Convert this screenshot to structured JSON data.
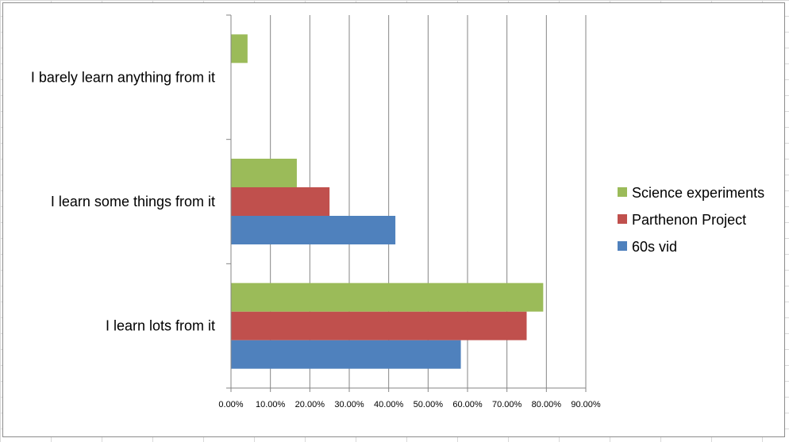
{
  "chart_data": {
    "type": "bar",
    "orientation": "horizontal",
    "categories": [
      "I learn lots from it",
      "I learn some things from it",
      "I barely learn anything from it"
    ],
    "series": [
      {
        "name": "60s vid",
        "color": "#4f81bd",
        "values": [
          0.583,
          0.417,
          0.0
        ]
      },
      {
        "name": "Parthenon Project",
        "color": "#c0504d",
        "values": [
          0.75,
          0.25,
          0.0
        ]
      },
      {
        "name": "Science experiments",
        "color": "#9bbb59",
        "values": [
          0.792,
          0.167,
          0.042
        ]
      }
    ],
    "xlim": [
      0,
      0.9
    ],
    "xticks": [
      0,
      0.1,
      0.2,
      0.3,
      0.4,
      0.5,
      0.6,
      0.7,
      0.8,
      0.9
    ],
    "xtick_labels": [
      "0.00%",
      "10.00%",
      "20.00%",
      "30.00%",
      "40.00%",
      "50.00%",
      "60.00%",
      "70.00%",
      "80.00%",
      "90.00%"
    ],
    "grid": true,
    "legend_position": "right",
    "legend_order": [
      "Science experiments",
      "Parthenon Project",
      "60s vid"
    ],
    "title": "",
    "xlabel": "",
    "ylabel": ""
  }
}
